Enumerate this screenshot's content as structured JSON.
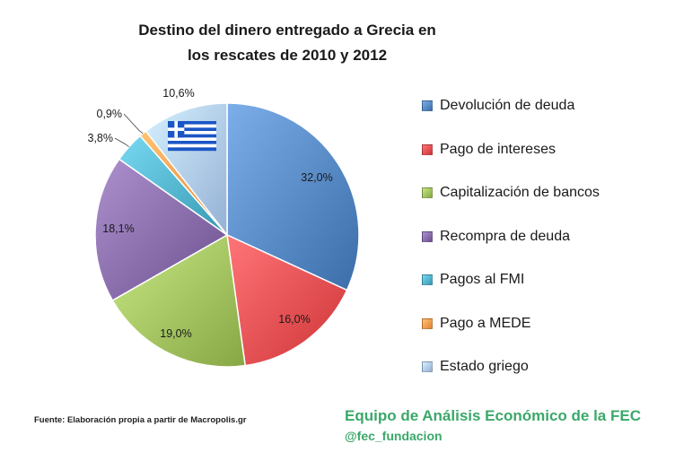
{
  "chart_data": {
    "type": "pie",
    "title_lines": [
      "Destino del dinero entregado a Grecia en",
      "los rescates de 2010 y 2012"
    ],
    "categories": [
      "Devolución de deuda",
      "Pago de intereses",
      "Capitalización de bancos",
      "Recompra de deuda",
      "Pagos al FMI",
      "Pago a MEDE",
      "Estado griego"
    ],
    "values": [
      32.0,
      16.0,
      19.0,
      18.1,
      3.8,
      0.9,
      10.6
    ],
    "labels": [
      "32,0%",
      "16,0%",
      "19,0%",
      "18,1%",
      "3,8%",
      "0,9%",
      "10,6%"
    ],
    "colors": [
      "#4f81bd",
      "#e2484b",
      "#9bbb59",
      "#8064a2",
      "#4bacc6",
      "#f79646",
      "#a8c4e8"
    ],
    "legend_position": "right"
  },
  "footer": {
    "source": "Fuente: Elaboración propia a partir de Macropolis.gr",
    "team": "Equipo de Análisis Económico de la FEC",
    "handle": "@fec_fundacion"
  }
}
